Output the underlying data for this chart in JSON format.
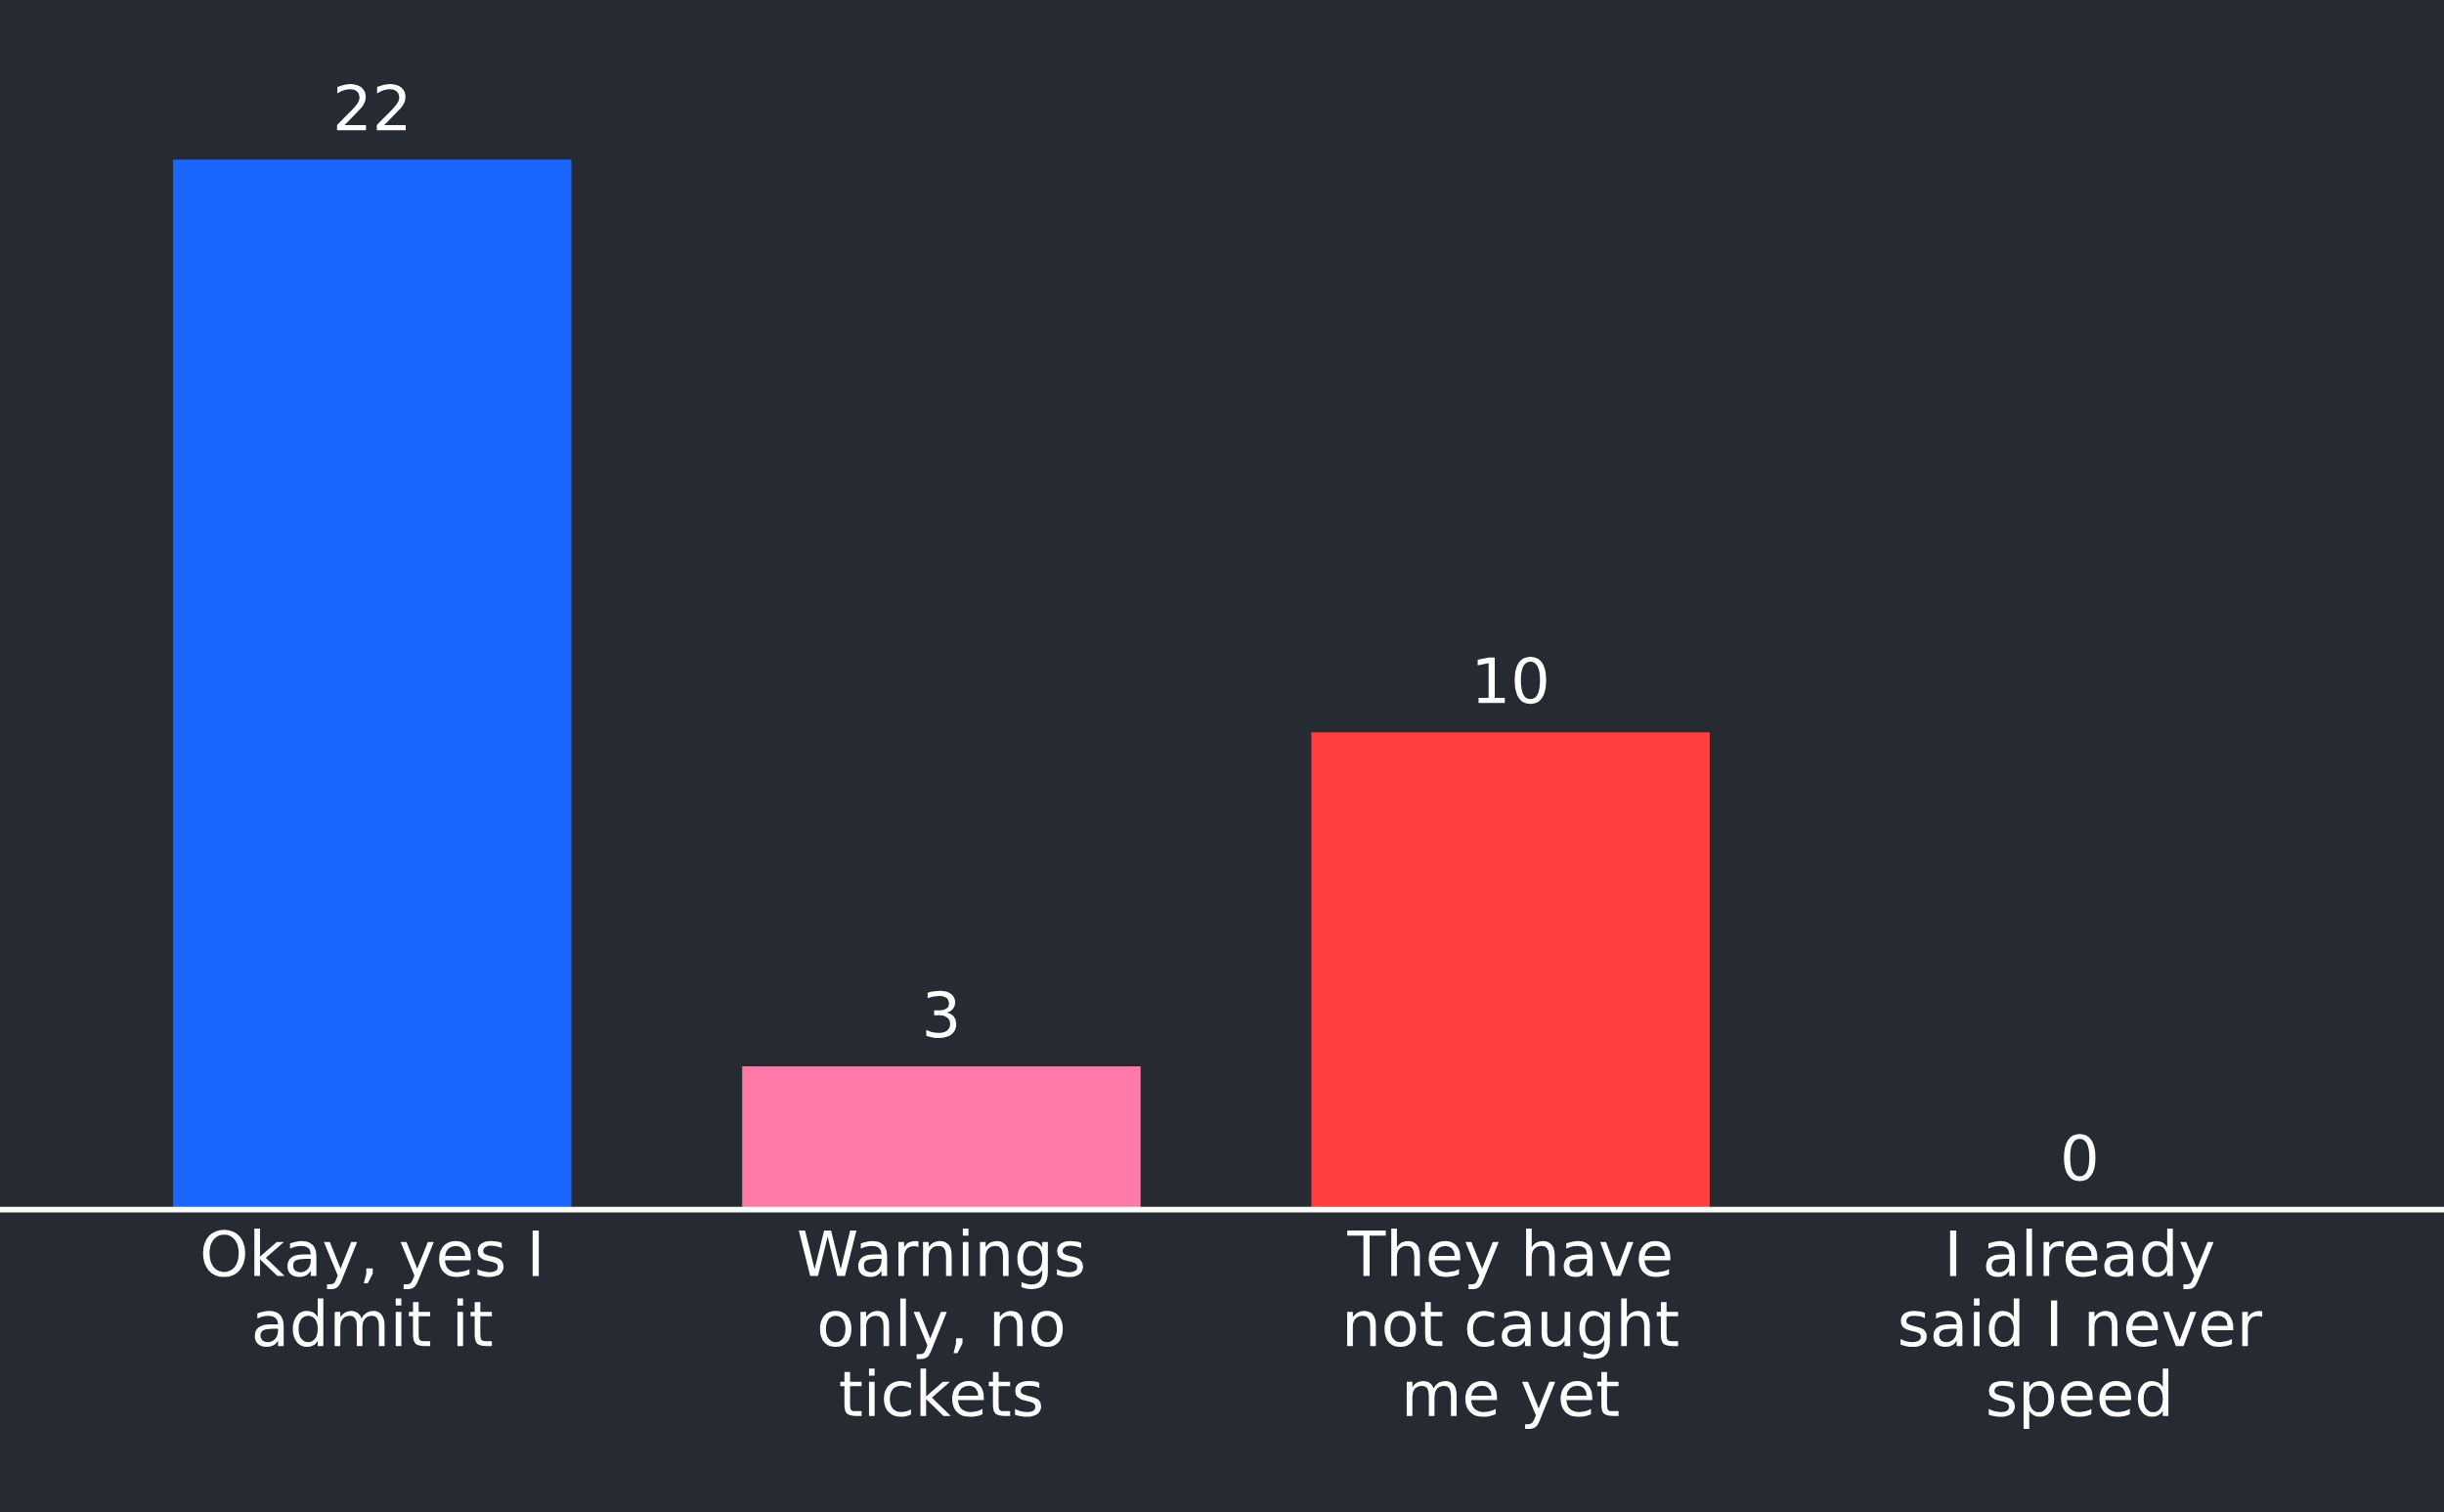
{
  "chart_data": {
    "type": "bar",
    "categories": [
      "Okay, yes I admit it",
      "Warnings only, no tickets",
      "They have not caught me yet",
      "I already said I never speed"
    ],
    "values": [
      22,
      3,
      10,
      0
    ],
    "colors": [
      "#1a66ff",
      "#ff7aa8",
      "#ff3f3f",
      "#262a33"
    ],
    "data_labels": true,
    "grid": false,
    "legend": false
  }
}
